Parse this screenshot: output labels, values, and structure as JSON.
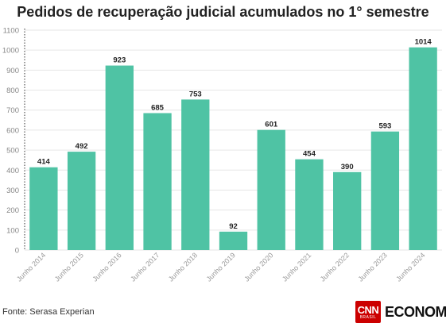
{
  "chart_data": {
    "type": "bar",
    "title": "Pedidos de recuperação judicial acumulados no 1° semestre",
    "categories": [
      "Junho 2014",
      "Junho 2015",
      "Junho 2016",
      "Junho 2017",
      "Junho 2018",
      "Junho 2019",
      "Junho 2020",
      "Junho 2021",
      "Junho 2022",
      "Junho 2023",
      "Junho 2024"
    ],
    "values": [
      414,
      492,
      923,
      685,
      753,
      92,
      601,
      454,
      390,
      593,
      1014
    ],
    "ylim": [
      0,
      1100
    ],
    "yticks": [
      0,
      100,
      200,
      300,
      400,
      500,
      600,
      700,
      800,
      900,
      1000,
      1100
    ],
    "grid": true,
    "legend": "none",
    "bar_color": "#4fc3a4"
  },
  "footer": {
    "source": "Fonte: Serasa Experian",
    "logo_cnn": "CNN",
    "logo_sub": "BRASIL",
    "logo_brand": "ECONOMIA"
  }
}
